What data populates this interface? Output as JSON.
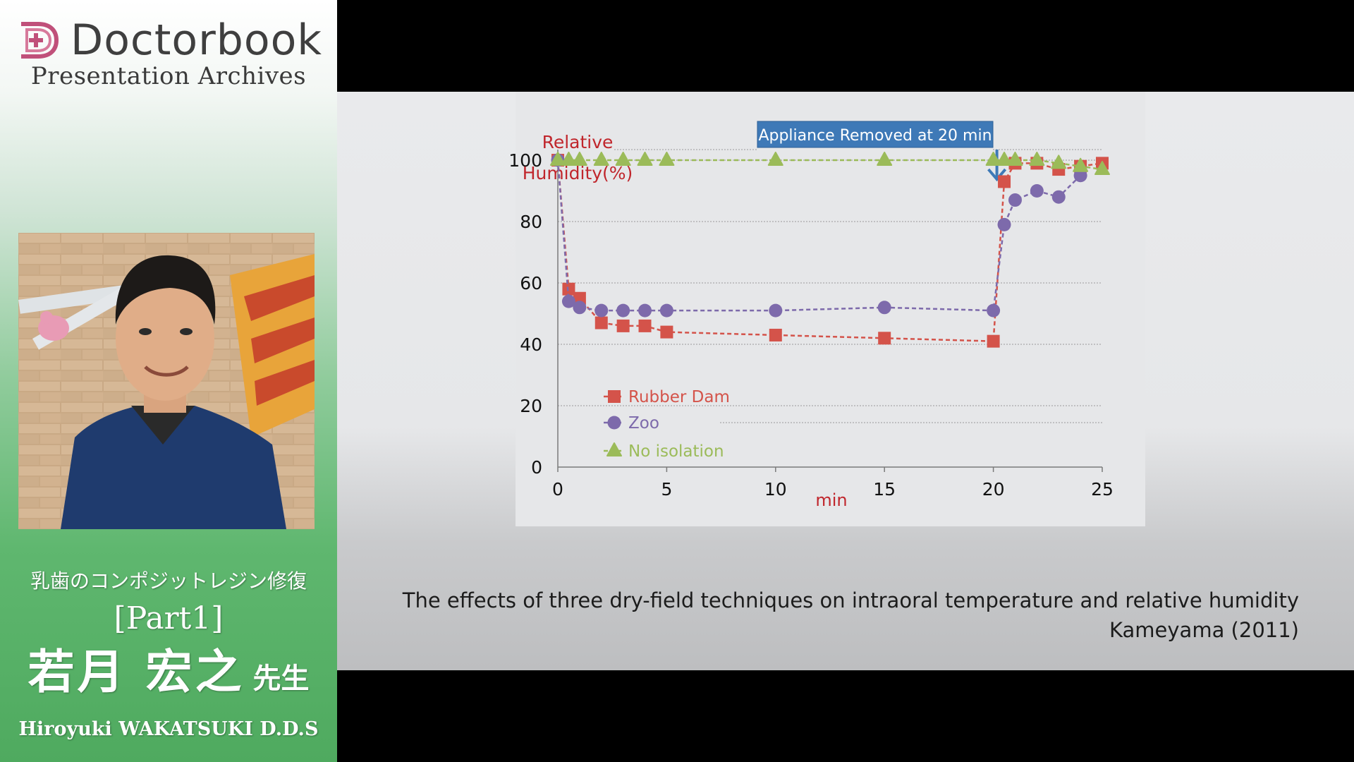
{
  "sidebar": {
    "brand_name": "Doctorbook",
    "brand_subtitle": "Presentation Archives",
    "lecture_title": "乳歯のコンポジットレジン修復",
    "lecture_part": "[Part1]",
    "speaker_name_jp": "若月 宏之",
    "speaker_honorific": "先生",
    "speaker_name_en": "Hiroyuki WAKATSUKI D.D.S"
  },
  "slide": {
    "caption_title": "The effects of three dry-field techniques on intraoral temperature and relative humidity",
    "caption_citation": "Kameyama (2011)"
  },
  "colors": {
    "brand_pink": "#c0507a",
    "rubber_dam": "#d4534a",
    "zoo": "#7d6aab",
    "no_isolation": "#9bbb59",
    "annotation_box": "#3e79b7",
    "axis_label": "#c0262c"
  },
  "chart_data": {
    "type": "line",
    "ylabel_line1": "Relative",
    "ylabel_line2": "Humidity(%)",
    "xlabel": "min",
    "xlim": [
      0,
      25
    ],
    "ylim": [
      0,
      100
    ],
    "xticks": [
      0,
      5,
      10,
      15,
      20,
      25
    ],
    "yticks": [
      0,
      20,
      40,
      60,
      80,
      100
    ],
    "grid": true,
    "annotation": {
      "text": "Appliance Removed at 20 min",
      "x": 20
    },
    "series": [
      {
        "name": "Rubber Dam",
        "marker": "square",
        "color": "#d4534a",
        "x": [
          0,
          0.5,
          1,
          2,
          3,
          4,
          5,
          10,
          15,
          20,
          20.5,
          21,
          22,
          23,
          24,
          25
        ],
        "y": [
          100,
          58,
          55,
          47,
          46,
          46,
          44,
          43,
          42,
          41,
          93,
          99,
          99,
          97,
          98,
          99
        ]
      },
      {
        "name": "Zoo",
        "marker": "circle",
        "color": "#7d6aab",
        "x": [
          0,
          0.5,
          1,
          2,
          3,
          4,
          5,
          10,
          15,
          20,
          20.5,
          21,
          22,
          23,
          24
        ],
        "y": [
          100,
          54,
          52,
          51,
          51,
          51,
          51,
          51,
          52,
          51,
          79,
          87,
          90,
          88,
          95
        ]
      },
      {
        "name": "No isolation",
        "marker": "triangle",
        "color": "#9bbb59",
        "x": [
          0,
          0.5,
          1,
          2,
          3,
          4,
          5,
          10,
          15,
          20,
          20.5,
          21,
          22,
          23,
          24,
          25
        ],
        "y": [
          100,
          100,
          100,
          100,
          100,
          100,
          100,
          100,
          100,
          100,
          100,
          100,
          100,
          99,
          98,
          97
        ]
      }
    ]
  }
}
